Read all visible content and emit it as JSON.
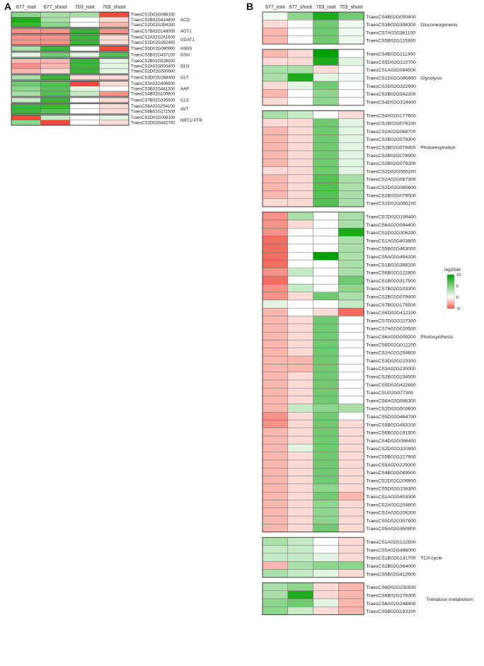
{
  "colors": {
    "high": "#00a000",
    "mid": "#ffffff",
    "low": "#f04a38",
    "cell_border": "#666666",
    "group_border": "#333333"
  },
  "chart_data": [
    {
      "panel_label": "A",
      "type": "heatmap",
      "columns": [
        "677_root",
        "677_shoot",
        "703_root",
        "703_shoot"
      ],
      "groups": [
        {
          "label": "ACO",
          "rows": [
            {
              "gene": "TraesCS1D02G098100",
              "values": [
                4,
                3,
                3,
                -5
              ]
            },
            {
              "gene": "TraesCS2B02G414800",
              "values": [
                8,
                3,
                0,
                -1
              ]
            },
            {
              "gene": "TraesCS2D02G394200",
              "values": [
                7,
                4,
                0,
                -2
              ]
            }
          ]
        },
        {
          "label": "AGT1",
          "rows": [
            {
              "gene": "TraesCS7B02G148000",
              "values": [
                -3,
                -3,
                7,
                -3
              ]
            }
          ]
        },
        {
          "label": "GGAT1",
          "rows": [
            {
              "gene": "TraesCS2A02G261600",
              "values": [
                -3,
                -3,
                7,
                -1
              ]
            },
            {
              "gene": "TraesCS2D02G262400",
              "values": [
                -3,
                -3,
                7,
                -1
              ]
            }
          ]
        },
        {
          "label": "ASNS",
          "rows": [
            {
              "gene": "TraesCS5D02G090900",
              "values": [
                3,
                7,
                0,
                -5
              ]
            }
          ]
        },
        {
          "label": "GSH",
          "rows": [
            {
              "gene": "TraesCS5B02G437100",
              "values": [
                1,
                5,
                1,
                6
              ]
            }
          ]
        },
        {
          "label": "GLN",
          "rows": [
            {
              "gene": "TraesCS2B02G528300",
              "values": [
                -2,
                -2,
                7,
                1
              ]
            },
            {
              "gene": "TraesCS2A02G500400",
              "values": [
                -3,
                -2,
                7,
                1
              ]
            },
            {
              "gene": "TraesCS2D02G500600",
              "values": [
                -2,
                -1,
                7,
                1
              ]
            }
          ]
        },
        {
          "label": "GLT",
          "rows": [
            {
              "gene": "TraesCS3D02G268400",
              "values": [
                3,
                7,
                -1,
                -1
              ]
            }
          ]
        },
        {
          "label": "AAP",
          "rows": [
            {
              "gene": "TraesCS3A02G406900",
              "values": [
                5,
                6,
                -5,
                -1
              ]
            },
            {
              "gene": "TraesCS3B02G441300",
              "values": [
                4,
                6,
                1,
                0
              ]
            },
            {
              "gene": "TraesCS4B02G100800",
              "values": [
                3,
                6,
                2,
                -3
              ]
            }
          ]
        },
        {
          "label": "ILL6",
          "rows": [
            {
              "gene": "TraesCS7B02G335500",
              "values": [
                2,
                7,
                0,
                -1
              ]
            }
          ]
        },
        {
          "label": "AVT",
          "rows": [
            {
              "gene": "TraesCS6A02G254100",
              "values": [
                7,
                7,
                0,
                -1
              ]
            },
            {
              "gene": "TraesCS6B02G271500",
              "values": [
                7,
                6,
                0,
                -1
              ]
            }
          ]
        },
        {
          "label": "NRT1/ PTR",
          "rows": [
            {
              "gene": "TraesCS2D02G008100",
              "values": [
                -5,
                2,
                0,
                1
              ]
            },
            {
              "gene": "TraesCS2D02G442700",
              "values": [
                4,
                -5,
                0,
                -1
              ]
            }
          ]
        }
      ]
    },
    {
      "panel_label": "B",
      "type": "heatmap",
      "columns": [
        "677_root",
        "677_shoot",
        "703_root",
        "703_shoot"
      ],
      "legend": {
        "title": "log2fold",
        "ticks": [
          10,
          5,
          0,
          -5
        ],
        "range": [
          -5,
          10
        ]
      },
      "groups": [
        {
          "label": "Gluconeogenesis",
          "label_row": 1,
          "rows": [
            {
              "gene": "TraesCS4B02G050400",
              "values": [
                0.5,
                4,
                8,
                5
              ]
            },
            {
              "gene": "TraesCS3B02G398300",
              "values": [
                -1,
                0,
                5,
                0.5
              ]
            },
            {
              "gene": "TraesCS7A02G381100",
              "values": [
                -2,
                0,
                5,
                0.5
              ]
            },
            {
              "gene": "TraesCS5B02G115300",
              "values": [
                -2,
                0,
                5,
                0.5
              ]
            }
          ]
        },
        {
          "label": "Glycolysis",
          "label_row": 3,
          "rows": [
            {
              "gene": "TraesCS4B02G211400",
              "values": [
                -2,
                -1,
                9,
                0
              ]
            },
            {
              "gene": "TraesCS5D02G122700",
              "values": [
                -1,
                -1,
                8,
                1
              ]
            },
            {
              "gene": "TraesCS1A02G084500",
              "values": [
                3,
                3,
                -1,
                0
              ]
            },
            {
              "gene": "TraesCS1D02G085900",
              "values": [
                3,
                8,
                1,
                0.5
              ]
            },
            {
              "gene": "TraesCS2D02G322900",
              "values": [
                -1,
                1,
                5,
                0
              ]
            },
            {
              "gene": "TraesCS2B02G342200",
              "values": [
                -2,
                0,
                4,
                0
              ]
            },
            {
              "gene": "TraesCS4D02G319400",
              "values": [
                -1,
                0,
                4,
                0
              ]
            }
          ]
        },
        {
          "label": "Photorespiration",
          "label_row": 4,
          "rows": [
            {
              "gene": "TraesCS4A02G177600",
              "values": [
                3,
                2,
                0,
                -1
              ]
            },
            {
              "gene": "TraesCS2B02G079100",
              "values": [
                -1,
                -1,
                5,
                1
              ]
            },
            {
              "gene": "TraesCS2A02G068700",
              "values": [
                -2,
                -1,
                5,
                1
              ]
            },
            {
              "gene": "TraesCS2B02G079300",
              "values": [
                -2,
                -1,
                5,
                1
              ]
            },
            {
              "gene": "TraesCS2B02G079400",
              "values": [
                -2,
                -1,
                5,
                1
              ]
            },
            {
              "gene": "TraesCS2B02G078900",
              "values": [
                -2,
                -1,
                5,
                1
              ]
            },
            {
              "gene": "TraesCS2B02G079200",
              "values": [
                -2,
                -1,
                5,
                1
              ]
            },
            {
              "gene": "TraesCS2D02G065200",
              "values": [
                -1,
                -1,
                5,
                1
              ]
            },
            {
              "gene": "TraesCS2A02G067300",
              "values": [
                -2,
                -1,
                6,
                3
              ]
            },
            {
              "gene": "TraesCS2D02G065600",
              "values": [
                -2,
                -1,
                6,
                3
              ]
            },
            {
              "gene": "TraesCS2B02G079500",
              "values": [
                -2,
                -1,
                6,
                3
              ]
            },
            {
              "gene": "TraesCS2D02G065100",
              "values": [
                -1,
                -1,
                6,
                3
              ]
            }
          ]
        },
        {
          "label": "Photosynthesis",
          "label_row": 15,
          "rows": [
            {
              "gene": "TraesCS7D02G199400",
              "values": [
                -3,
                3,
                0,
                3
              ]
            },
            {
              "gene": "TraesCS6A02G094400",
              "values": [
                -3,
                -1,
                0,
                3
              ]
            },
            {
              "gene": "TraesCS1D02G306200",
              "values": [
                -3,
                0,
                0,
                8
              ]
            },
            {
              "gene": "TraesCS1A02G403800",
              "values": [
                -4,
                0,
                0,
                3
              ]
            },
            {
              "gene": "TraesCS5B02G463000",
              "values": [
                -4,
                0,
                0,
                3
              ]
            },
            {
              "gene": "TraesCS5A02G454200",
              "values": [
                -4,
                0,
                9,
                3
              ]
            },
            {
              "gene": "TraesCS1B02G388200",
              "values": [
                -4,
                0,
                0,
                3
              ]
            },
            {
              "gene": "TraesCS6B02G122800",
              "values": [
                -3,
                2,
                0,
                3
              ]
            },
            {
              "gene": "TraesCS1B02G317500",
              "values": [
                -4,
                0,
                0,
                5
              ]
            },
            {
              "gene": "TraesCS7B02G103300",
              "values": [
                -3,
                2,
                0,
                4
              ]
            },
            {
              "gene": "TraesCS2B02G079400",
              "values": [
                -3,
                -1,
                5,
                3
              ]
            },
            {
              "gene": "TraesCS7B02G175500",
              "values": [
                1,
                0,
                0,
                2
              ]
            },
            {
              "gene": "TraesCS6D02G412100",
              "values": [
                -2,
                0,
                -1,
                -4
              ]
            },
            {
              "gene": "TraesCS7D02G227300",
              "values": [
                -2,
                -1,
                5,
                0
              ]
            },
            {
              "gene": "TraesCS7A02G020500",
              "values": [
                -2,
                -1,
                5,
                0
              ]
            },
            {
              "gene": "TraesCS6A02G009200",
              "values": [
                -2,
                -1,
                5,
                0
              ]
            },
            {
              "gene": "TraesCS6D02G012200",
              "values": [
                -2,
                -1,
                5,
                0
              ]
            },
            {
              "gene": "TraesCS2A02G254600",
              "values": [
                -2,
                -1,
                5,
                0
              ]
            },
            {
              "gene": "TraesCS3D02G223300",
              "values": [
                -2,
                -2,
                5,
                0
              ]
            },
            {
              "gene": "TraesCS3A02G230000",
              "values": [
                -2,
                -2,
                5,
                0
              ]
            },
            {
              "gene": "TraesCS2B02G234500",
              "values": [
                -2,
                -1,
                5,
                0
              ]
            },
            {
              "gene": "TraesCS5D02G422800",
              "values": [
                -2,
                -1,
                5,
                0
              ]
            },
            {
              "gene": "TraesCSU02G077300",
              "values": [
                -2,
                -1,
                5,
                0
              ]
            },
            {
              "gene": "TraesCS6A02G086300",
              "values": [
                -2,
                -1,
                5,
                0
              ]
            },
            {
              "gene": "TraesCS2D02G503600",
              "values": [
                -2,
                2,
                4,
                3
              ]
            },
            {
              "gene": "TraesCS5D02G464700",
              "values": [
                -3,
                -1,
                5,
                0
              ]
            },
            {
              "gene": "TraesCS5B02G463100",
              "values": [
                -3,
                -1,
                5,
                -1
              ]
            },
            {
              "gene": "TraesCS6B02G191500",
              "values": [
                -2,
                -1,
                5,
                -1
              ]
            },
            {
              "gene": "TraesCS4D02G086400",
              "values": [
                -2,
                -1,
                5,
                -1
              ]
            },
            {
              "gene": "TraesCS2D02G320900",
              "values": [
                -2,
                1,
                5,
                -1
              ]
            },
            {
              "gene": "TraesCS5B02G227900",
              "values": [
                -2,
                -1,
                5,
                -1
              ]
            },
            {
              "gene": "TraesCS5A02G229300",
              "values": [
                -2,
                -1,
                5,
                -1
              ]
            },
            {
              "gene": "TraesCS4B02G089500",
              "values": [
                -2,
                -1,
                5,
                -1
              ]
            },
            {
              "gene": "TraesCS2D02G209900",
              "values": [
                -2,
                -1,
                5,
                -1
              ]
            },
            {
              "gene": "TraesCS5D02G238300",
              "values": [
                -2,
                -1,
                4,
                -1
              ]
            },
            {
              "gene": "TraesCS1A02G403300",
              "values": [
                -2,
                -1,
                5,
                -2
              ]
            },
            {
              "gene": "TraesCS2A02G204800",
              "values": [
                -2,
                -1,
                4,
                -1
              ]
            },
            {
              "gene": "TraesCS2A02G206200",
              "values": [
                -2,
                -1,
                4,
                -1
              ]
            },
            {
              "gene": "TraesCS5D02G357800",
              "values": [
                -2,
                -1,
                4,
                -1
              ]
            },
            {
              "gene": "TraesCS5A02G350800",
              "values": [
                -2,
                -1,
                5,
                -1
              ]
            }
          ]
        },
        {
          "label": "TCA cycle",
          "label_row": 2,
          "rows": [
            {
              "gene": "TraesCS1A02G122500",
              "values": [
                3,
                2,
                0,
                -1
              ]
            },
            {
              "gene": "TraesCS5A02G496000",
              "values": [
                2,
                2,
                0,
                -1
              ]
            },
            {
              "gene": "TraesCS1B02G141700",
              "values": [
                2,
                2,
                1,
                -1
              ]
            },
            {
              "gene": "TraesCS2B02G364000",
              "values": [
                -2,
                3,
                4,
                4
              ]
            },
            {
              "gene": "TraesCS5B02G412500",
              "values": [
                3,
                2,
                1,
                -1
              ]
            }
          ]
        },
        {
          "label": "Trehalose metabolism",
          "label_row": 1.5,
          "rows": [
            {
              "gene": "TraesCS6D02G230500",
              "values": [
                3,
                4,
                -1,
                -2
              ]
            },
            {
              "gene": "TraesCS6B02G276300",
              "values": [
                3,
                8,
                -1,
                -2
              ]
            },
            {
              "gene": "TraesCS6A02G248400",
              "values": [
                4,
                5,
                1,
                -2
              ]
            },
            {
              "gene": "TraesCS5B02G193100",
              "values": [
                4,
                2,
                -1,
                -2
              ]
            }
          ]
        }
      ]
    }
  ]
}
